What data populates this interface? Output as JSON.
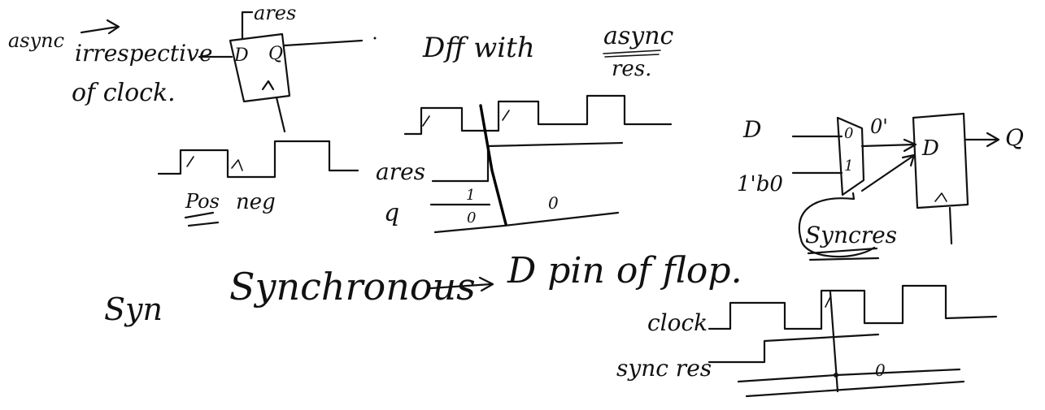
{
  "notes": {
    "async_label": "async",
    "irrespective": "irrespective",
    "of_clock": "of clock.",
    "ares_top": "ares",
    "ff_d": "D",
    "ff_q": "Q",
    "pos": "Pos",
    "neg": "neg",
    "title_dff": "Dff with",
    "title_async": "async",
    "title_res": "res.",
    "ares_wave": "ares",
    "q_wave": "q",
    "val_1": "1",
    "val_0a": "0",
    "val_0b": "0",
    "mux_d": "D",
    "mux_1b0": "1'b0",
    "mux_in0": "0",
    "mux_in1": "1",
    "mux_out": "0'",
    "ff2_d": "D",
    "ff2_q": "Q",
    "syncres": "Syncres",
    "sync_label": "Syn",
    "synchronous": "Synchronous",
    "d_pin_of_flop": "D pin of flop.",
    "clock": "clock",
    "sync_res": "sync res",
    "val_0c": "0"
  }
}
